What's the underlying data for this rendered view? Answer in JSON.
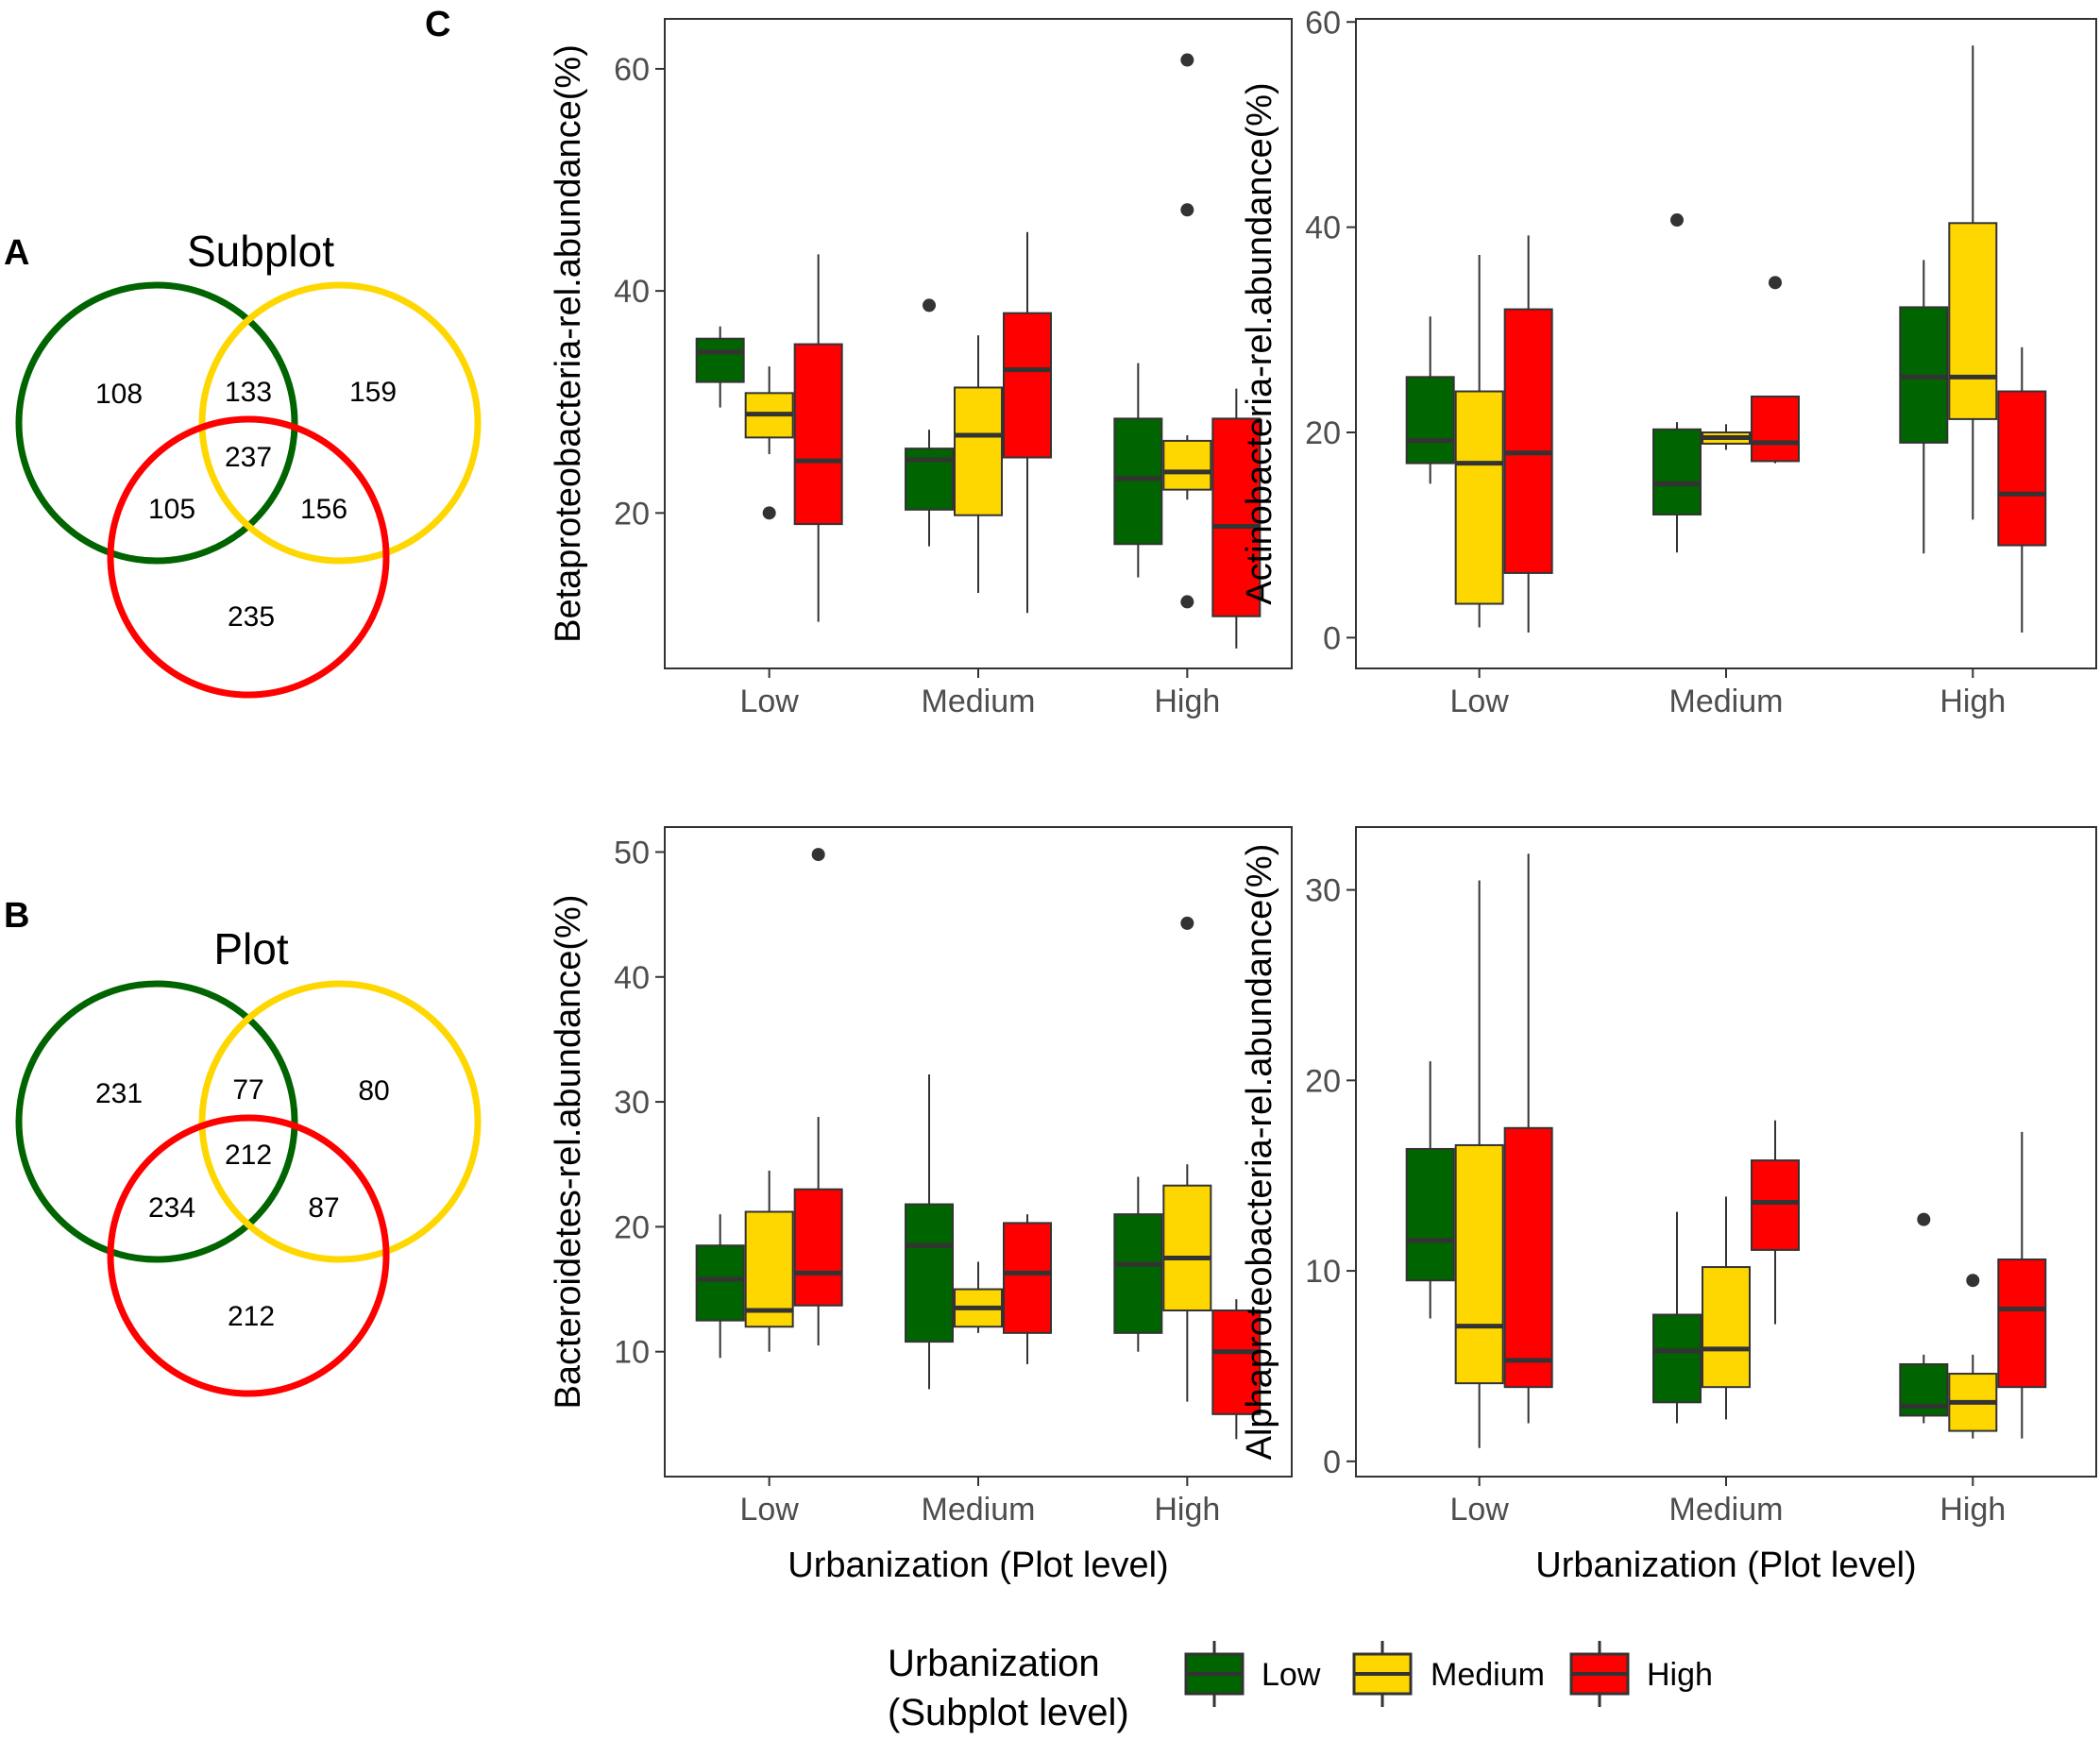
{
  "panel_labels": {
    "a": "A",
    "b": "B",
    "c": "C"
  },
  "colors": {
    "low": "#006400",
    "medium": "#FFD700",
    "high": "#FF0000",
    "line": "#333333"
  },
  "venn": [
    {
      "panel": "A",
      "title": "Subplot",
      "regions": {
        "low_only": "108",
        "low_medium": "133",
        "medium_only": "159",
        "all_three": "237",
        "low_high": "105",
        "medium_high": "156",
        "high_only": "235"
      }
    },
    {
      "panel": "B",
      "title": "Plot",
      "regions": {
        "low_only": "231",
        "low_medium": "77",
        "medium_only": "80",
        "all_three": "212",
        "low_high": "234",
        "medium_high": "87",
        "high_only": "212"
      }
    }
  ],
  "chart_data": [
    {
      "type": "box",
      "ylabel": "Betaproteobacteria-rel.abundance(%)",
      "xlabel": "",
      "categories": [
        "Low",
        "Medium",
        "High"
      ],
      "yticks": [
        20,
        40,
        60
      ],
      "ylim": [
        6,
        64.5
      ],
      "series": [
        {
          "name": "Low",
          "boxes": [
            {
              "whisker_low": 29.5,
              "q1": 31.8,
              "median": 34.5,
              "q3": 35.7,
              "whisker_high": 36.8,
              "outliers": []
            },
            {
              "whisker_low": 17.0,
              "q1": 20.3,
              "median": 24.8,
              "q3": 25.8,
              "whisker_high": 27.5,
              "outliers": [
                38.7
              ]
            },
            {
              "whisker_low": 14.2,
              "q1": 17.2,
              "median": 23.1,
              "q3": 28.5,
              "whisker_high": 33.5,
              "outliers": []
            }
          ]
        },
        {
          "name": "Medium",
          "boxes": [
            {
              "whisker_low": 25.3,
              "q1": 26.8,
              "median": 28.9,
              "q3": 30.8,
              "whisker_high": 33.2,
              "outliers": [
                20.0
              ]
            },
            {
              "whisker_low": 12.8,
              "q1": 19.8,
              "median": 27.0,
              "q3": 31.3,
              "whisker_high": 36.0,
              "outliers": []
            },
            {
              "whisker_low": 21.2,
              "q1": 22.1,
              "median": 23.7,
              "q3": 26.5,
              "whisker_high": 27.0,
              "outliers": [
                12.0,
                47.3,
                60.8
              ]
            }
          ]
        },
        {
          "name": "High",
          "boxes": [
            {
              "whisker_low": 10.2,
              "q1": 19.0,
              "median": 24.7,
              "q3": 35.2,
              "whisker_high": 43.3,
              "outliers": []
            },
            {
              "whisker_low": 11.0,
              "q1": 25.0,
              "median": 32.9,
              "q3": 38.0,
              "whisker_high": 45.3,
              "outliers": []
            },
            {
              "whisker_low": 7.8,
              "q1": 10.7,
              "median": 18.8,
              "q3": 28.5,
              "whisker_high": 31.2,
              "outliers": []
            }
          ]
        }
      ]
    },
    {
      "type": "box",
      "ylabel": "Actinobacteria-rel.abundance(%)",
      "xlabel": "",
      "categories": [
        "Low",
        "Medium",
        "High"
      ],
      "yticks": [
        0,
        20,
        40,
        60
      ],
      "ylim": [
        -3,
        60.3
      ],
      "series": [
        {
          "name": "Low",
          "boxes": [
            {
              "whisker_low": 15.0,
              "q1": 17.0,
              "median": 19.2,
              "q3": 25.4,
              "whisker_high": 31.3,
              "outliers": []
            },
            {
              "whisker_low": 8.3,
              "q1": 12.0,
              "median": 15.0,
              "q3": 20.3,
              "whisker_high": 21.0,
              "outliers": [
                40.7
              ]
            },
            {
              "whisker_low": 8.2,
              "q1": 19.0,
              "median": 25.4,
              "q3": 32.2,
              "whisker_high": 36.8,
              "outliers": []
            }
          ]
        },
        {
          "name": "Medium",
          "boxes": [
            {
              "whisker_low": 1.0,
              "q1": 3.3,
              "median": 17.0,
              "q3": 24.0,
              "whisker_high": 37.3,
              "outliers": []
            },
            {
              "whisker_low": 18.3,
              "q1": 18.9,
              "median": 19.5,
              "q3": 20.0,
              "whisker_high": 20.8,
              "outliers": []
            },
            {
              "whisker_low": 11.5,
              "q1": 21.3,
              "median": 25.4,
              "q3": 40.4,
              "whisker_high": 57.7,
              "outliers": []
            }
          ]
        },
        {
          "name": "High",
          "boxes": [
            {
              "whisker_low": 0.5,
              "q1": 6.3,
              "median": 18.0,
              "q3": 32.0,
              "whisker_high": 39.2,
              "outliers": []
            },
            {
              "whisker_low": 17.0,
              "q1": 17.2,
              "median": 19.0,
              "q3": 23.5,
              "whisker_high": 23.5,
              "outliers": [
                34.6
              ]
            },
            {
              "whisker_low": 0.5,
              "q1": 9.0,
              "median": 14.0,
              "q3": 24.0,
              "whisker_high": 28.3,
              "outliers": []
            }
          ]
        }
      ]
    },
    {
      "type": "box",
      "ylabel": "Bacteroidetes-rel.abundance(%)",
      "xlabel": "Urbanization (Plot level)",
      "categories": [
        "Low",
        "Medium",
        "High"
      ],
      "yticks": [
        10,
        20,
        30,
        40,
        50
      ],
      "ylim": [
        0,
        52
      ],
      "series": [
        {
          "name": "Low",
          "boxes": [
            {
              "whisker_low": 9.5,
              "q1": 12.5,
              "median": 15.8,
              "q3": 18.5,
              "whisker_high": 21.0,
              "outliers": []
            },
            {
              "whisker_low": 7.0,
              "q1": 10.8,
              "median": 18.5,
              "q3": 21.8,
              "whisker_high": 32.2,
              "outliers": []
            },
            {
              "whisker_low": 10.0,
              "q1": 11.5,
              "median": 17.0,
              "q3": 21.0,
              "whisker_high": 24.0,
              "outliers": []
            }
          ]
        },
        {
          "name": "Medium",
          "boxes": [
            {
              "whisker_low": 10.0,
              "q1": 12.0,
              "median": 13.3,
              "q3": 21.2,
              "whisker_high": 24.5,
              "outliers": []
            },
            {
              "whisker_low": 11.5,
              "q1": 12.0,
              "median": 13.5,
              "q3": 15.0,
              "whisker_high": 17.2,
              "outliers": []
            },
            {
              "whisker_low": 6.0,
              "q1": 13.3,
              "median": 17.5,
              "q3": 23.3,
              "whisker_high": 25.0,
              "outliers": [
                44.3
              ]
            }
          ]
        },
        {
          "name": "High",
          "boxes": [
            {
              "whisker_low": 10.5,
              "q1": 13.7,
              "median": 16.3,
              "q3": 23.0,
              "whisker_high": 28.8,
              "outliers": [
                49.8
              ]
            },
            {
              "whisker_low": 9.0,
              "q1": 11.5,
              "median": 16.3,
              "q3": 20.3,
              "whisker_high": 21.0,
              "outliers": []
            },
            {
              "whisker_low": 3.0,
              "q1": 5.0,
              "median": 10.0,
              "q3": 13.3,
              "whisker_high": 14.2,
              "outliers": []
            }
          ]
        }
      ]
    },
    {
      "type": "box",
      "ylabel": "Alphaproteobacteria-rel.abundance(%)",
      "xlabel": "Urbanization (Plot level)",
      "categories": [
        "Low",
        "Medium",
        "High"
      ],
      "yticks": [
        0,
        10,
        20,
        30
      ],
      "ylim": [
        -0.8,
        33.3
      ],
      "series": [
        {
          "name": "Low",
          "boxes": [
            {
              "whisker_low": 7.5,
              "q1": 9.5,
              "median": 11.6,
              "q3": 16.4,
              "whisker_high": 21.0,
              "outliers": []
            },
            {
              "whisker_low": 2.0,
              "q1": 3.1,
              "median": 5.8,
              "q3": 7.7,
              "whisker_high": 13.1,
              "outliers": []
            },
            {
              "whisker_low": 2.0,
              "q1": 2.4,
              "median": 2.9,
              "q3": 5.1,
              "whisker_high": 5.6,
              "outliers": [
                12.7
              ]
            }
          ]
        },
        {
          "name": "Medium",
          "boxes": [
            {
              "whisker_low": 0.7,
              "q1": 4.1,
              "median": 7.1,
              "q3": 16.6,
              "whisker_high": 30.5,
              "outliers": []
            },
            {
              "whisker_low": 2.2,
              "q1": 3.9,
              "median": 5.9,
              "q3": 10.2,
              "whisker_high": 13.9,
              "outliers": []
            },
            {
              "whisker_low": 1.2,
              "q1": 1.6,
              "median": 3.1,
              "q3": 4.6,
              "whisker_high": 5.6,
              "outliers": [
                9.5
              ]
            }
          ]
        },
        {
          "name": "High",
          "boxes": [
            {
              "whisker_low": 2.0,
              "q1": 3.9,
              "median": 5.3,
              "q3": 17.5,
              "whisker_high": 31.9,
              "outliers": []
            },
            {
              "whisker_low": 7.2,
              "q1": 11.1,
              "median": 13.6,
              "q3": 15.8,
              "whisker_high": 17.9,
              "outliers": []
            },
            {
              "whisker_low": 1.2,
              "q1": 3.9,
              "median": 8.0,
              "q3": 10.6,
              "whisker_high": 17.3,
              "outliers": []
            }
          ]
        }
      ]
    }
  ],
  "legend": {
    "title_line1": "Urbanization",
    "title_line2": "(Subplot level)",
    "items": [
      {
        "label": "Low",
        "color": "#006400"
      },
      {
        "label": "Medium",
        "color": "#FFD700"
      },
      {
        "label": "High",
        "color": "#FF0000"
      }
    ]
  }
}
